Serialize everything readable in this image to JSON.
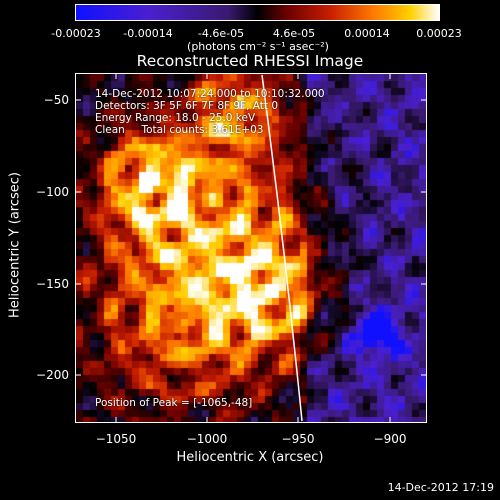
{
  "colorbar": {
    "ticks": [
      "-0.00023",
      "-0.00014",
      "-4.6e-05",
      "4.6e-05",
      "0.00014",
      "0.00023"
    ],
    "units": "(photons cm⁻² s⁻¹ asec⁻²)",
    "colors": [
      "#1010ff",
      "#4a1fd0",
      "#3a1a70",
      "#000000",
      "#6a0000",
      "#c81e00",
      "#ff7a00",
      "#ffd000",
      "#ffffff"
    ]
  },
  "title": "Reconstructed RHESSI Image",
  "annotations": {
    "time": "14-Dec-2012 10:07:24.000 to 10:10:32.000",
    "detectors": "Detectors: 3F 5F 6F 7F 8F 9F, Att 0",
    "energy": "Energy Range: 18.0 - 25.0 keV",
    "clean": "Clean     Total counts: 3.61E+03",
    "peak": "Position of Peak = [-1065,-48]"
  },
  "axes": {
    "xlabel": "Heliocentric X (arcsec)",
    "ylabel": "Heliocentric Y (arcsec)",
    "xticks": [
      "−1050",
      "−1000",
      "−950",
      "−900"
    ],
    "yticks": [
      "−50",
      "−100",
      "−150",
      "−200"
    ]
  },
  "footer": "14-Dec-2012 17:19"
}
